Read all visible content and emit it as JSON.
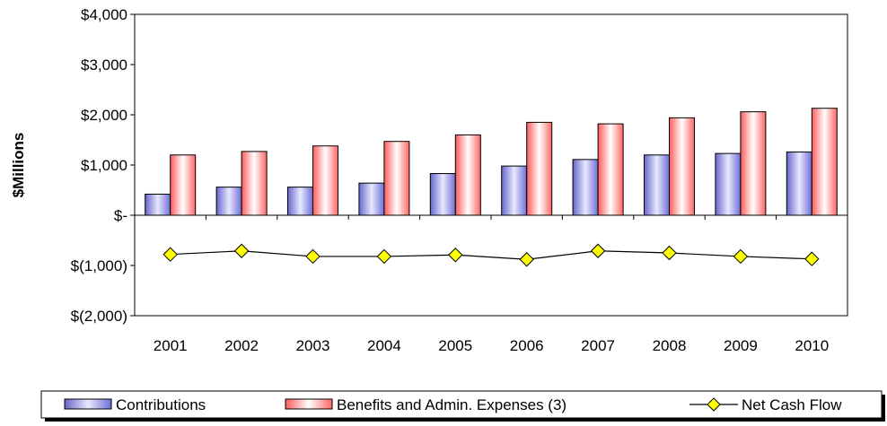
{
  "chart_data": {
    "type": "bar",
    "ylabel": "$Millions",
    "xlabel": "",
    "ylim": [
      -2000,
      4000
    ],
    "y_ticks": [
      {
        "value": 4000,
        "label": "$4,000"
      },
      {
        "value": 3000,
        "label": "$3,000"
      },
      {
        "value": 2000,
        "label": "$2,000"
      },
      {
        "value": 1000,
        "label": "$1,000"
      },
      {
        "value": 0,
        "label": "$-"
      },
      {
        "value": -1000,
        "label": "$(1,000)"
      },
      {
        "value": -2000,
        "label": "$(2,000)"
      }
    ],
    "categories": [
      "2001",
      "2002",
      "2003",
      "2004",
      "2005",
      "2006",
      "2007",
      "2008",
      "2009",
      "2010"
    ],
    "series": [
      {
        "name": "Contributions",
        "kind": "bar",
        "color": "#9999ff",
        "values": [
          420,
          560,
          560,
          640,
          830,
          980,
          1110,
          1200,
          1230,
          1260
        ]
      },
      {
        "name": "Benefits and Admin. Expenses (3)",
        "kind": "bar",
        "color": "#ff8080",
        "values": [
          1200,
          1270,
          1380,
          1470,
          1600,
          1850,
          1820,
          1940,
          2060,
          2130
        ]
      },
      {
        "name": "Net Cash Flow",
        "kind": "line",
        "color": "#ffff00",
        "values": [
          -780,
          -710,
          -820,
          -820,
          -790,
          -880,
          -710,
          -750,
          -820,
          -870
        ]
      }
    ],
    "grid": false,
    "legend_position": "bottom"
  }
}
